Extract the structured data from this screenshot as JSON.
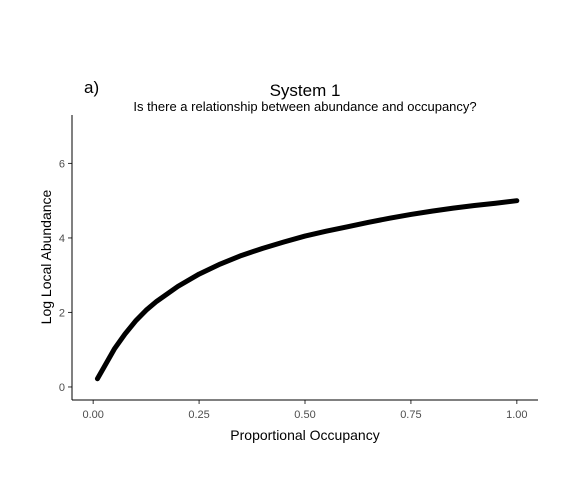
{
  "chart_data": {
    "type": "line",
    "panel_tag": "a)",
    "title": "System 1",
    "subtitle": "Is there a relationship between abundance and occupancy?",
    "xlabel": "Proportional Occupancy",
    "ylabel": "Log Local Abundance",
    "xlim": [
      -0.05,
      1.05
    ],
    "ylim": [
      -0.35,
      7.3
    ],
    "x_ticks": [
      0,
      0.25,
      0.5,
      0.75,
      1
    ],
    "x_tick_labels": [
      "0.00",
      "0.25",
      "0.50",
      "0.75",
      "1.00"
    ],
    "y_ticks": [
      0,
      2,
      4,
      6
    ],
    "y_tick_labels": [
      "0",
      "2",
      "4",
      "6"
    ],
    "grid": false,
    "series": [
      {
        "color": "#000000",
        "x": [
          0.01,
          0.025,
          0.05,
          0.075,
          0.1,
          0.125,
          0.15,
          0.2,
          0.25,
          0.3,
          0.35,
          0.4,
          0.45,
          0.5,
          0.55,
          0.6,
          0.65,
          0.7,
          0.75,
          0.8,
          0.85,
          0.9,
          0.95,
          1.0
        ],
        "y": [
          0.22,
          0.52,
          1.02,
          1.42,
          1.77,
          2.06,
          2.3,
          2.7,
          3.03,
          3.3,
          3.53,
          3.72,
          3.89,
          4.05,
          4.18,
          4.3,
          4.42,
          4.53,
          4.63,
          4.72,
          4.8,
          4.87,
          4.93,
          5.0
        ]
      }
    ]
  }
}
